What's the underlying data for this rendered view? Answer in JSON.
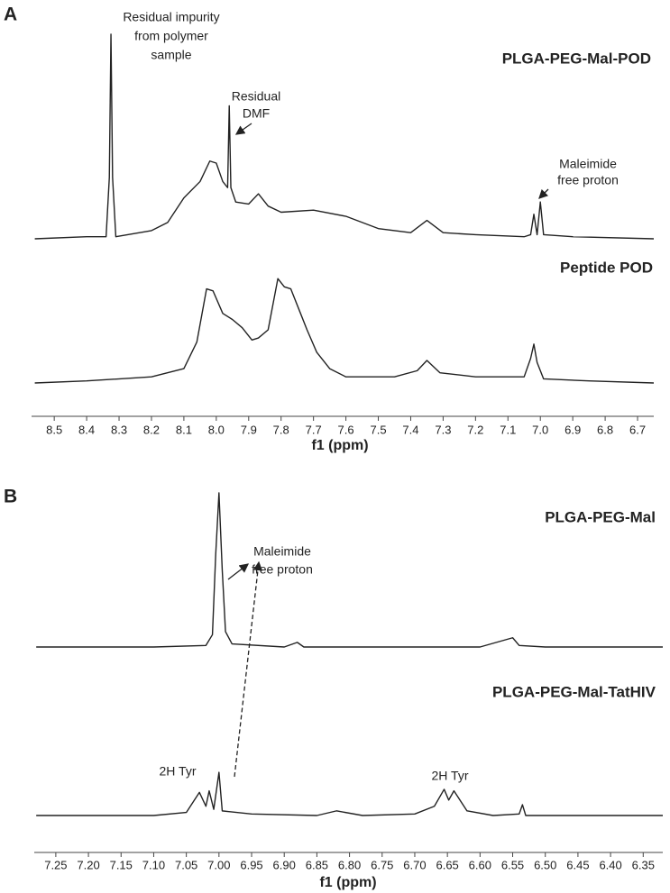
{
  "chart_data": [
    {
      "type": "line",
      "panel_label": "A",
      "xlabel": "f1 (ppm)",
      "xlim": [
        8.57,
        6.65
      ],
      "xticks": [
        8.5,
        8.4,
        8.3,
        8.2,
        8.1,
        {
          "value": 8,
          "label": "8.0"
        },
        7.9,
        7.8,
        7.7,
        7.6,
        7.5,
        7.4,
        7.3,
        7.2,
        7.1,
        {
          "value": 7,
          "label": "7.0"
        },
        6.9,
        6.8,
        6.7
      ],
      "series": [
        {
          "name": "PLGA-PEG-Mal-POD",
          "color": "#222222",
          "x": [
            8.56,
            8.4,
            8.34,
            8.33,
            8.325,
            8.32,
            8.31,
            8.2,
            8.15,
            8.1,
            8.05,
            8.02,
            8.0,
            7.98,
            7.965,
            7.96,
            7.955,
            7.94,
            7.9,
            7.87,
            7.84,
            7.8,
            7.7,
            7.6,
            7.5,
            7.4,
            7.35,
            7.3,
            7.2,
            7.05,
            7.03,
            7.02,
            7.01,
            7.0,
            6.99,
            6.9,
            6.65
          ],
          "values": [
            0,
            1,
            1,
            30,
            100,
            30,
            1,
            4,
            8,
            20,
            28,
            38,
            37,
            28,
            25,
            65,
            25,
            18,
            17,
            22,
            16,
            13,
            14,
            11,
            5,
            3,
            9,
            3,
            2,
            1,
            2,
            12,
            2,
            18,
            2,
            1,
            0
          ]
        },
        {
          "name": "Peptide POD",
          "color": "#222222",
          "x": [
            8.56,
            8.4,
            8.2,
            8.1,
            8.06,
            8.03,
            8.01,
            7.98,
            7.95,
            7.92,
            7.89,
            7.87,
            7.84,
            7.81,
            7.79,
            7.77,
            7.74,
            7.72,
            7.69,
            7.65,
            7.6,
            7.45,
            7.38,
            7.35,
            7.31,
            7.2,
            7.05,
            7.03,
            7.02,
            7.01,
            6.99,
            6.85,
            6.65
          ],
          "values": [
            0,
            1,
            3,
            7,
            20,
            46,
            45,
            34,
            31,
            27,
            21,
            22,
            26,
            51,
            47,
            46,
            34,
            26,
            15,
            7,
            3,
            3,
            6,
            11,
            5,
            3,
            3,
            12,
            19,
            10,
            2,
            1,
            0
          ]
        }
      ],
      "annotations": [
        {
          "lines": [
            "Residual impurity",
            "from polymer",
            "sample"
          ]
        },
        {
          "lines": [
            "Residual",
            "DMF"
          ]
        },
        {
          "lines": [
            "Maleimide",
            "free proton"
          ]
        }
      ]
    },
    {
      "type": "line",
      "panel_label": "B",
      "xlabel": "f1 (ppm)",
      "xlim": [
        7.283,
        6.32
      ],
      "xticks": [
        7.25,
        {
          "value": 7.2,
          "label": "7.20"
        },
        7.15,
        {
          "value": 7.1,
          "label": "7.10"
        },
        7.05,
        {
          "value": 7,
          "label": "7.00"
        },
        6.95,
        {
          "value": 6.9,
          "label": "6.90"
        },
        6.85,
        {
          "value": 6.8,
          "label": "6.80"
        },
        6.75,
        {
          "value": 6.7,
          "label": "6.70"
        },
        6.65,
        {
          "value": 6.6,
          "label": "6.60"
        },
        6.55,
        {
          "value": 6.5,
          "label": "6.50"
        },
        6.45,
        {
          "value": 6.4,
          "label": "6.40"
        },
        6.35
      ],
      "series": [
        {
          "name": "PLGA-PEG-Mal",
          "color": "#222222",
          "x": [
            7.28,
            7.1,
            7.02,
            7.01,
            7.005,
            7.0,
            6.995,
            6.99,
            6.98,
            6.9,
            6.88,
            6.87,
            6.6,
            6.55,
            6.54,
            6.5,
            6.32
          ],
          "values": [
            0,
            0,
            1,
            8,
            60,
            100,
            50,
            10,
            2,
            0,
            3,
            0,
            0,
            6,
            1,
            0,
            0
          ]
        },
        {
          "name": "PLGA-PEG-Mal-TatHIV",
          "color": "#222222",
          "x": [
            7.28,
            7.1,
            7.05,
            7.03,
            7.02,
            7.015,
            7.008,
            7.0,
            6.995,
            6.95,
            6.85,
            6.82,
            6.78,
            6.7,
            6.67,
            6.655,
            6.648,
            6.64,
            6.62,
            6.58,
            6.54,
            6.535,
            6.53,
            6.32
          ],
          "values": [
            0,
            0,
            2,
            15,
            6,
            16,
            4,
            28,
            3,
            1,
            0,
            3,
            0,
            1,
            6,
            17,
            10,
            16,
            3,
            0,
            1,
            7,
            0,
            0
          ]
        }
      ],
      "annotations": [
        {
          "lines": [
            "Maleimide",
            "free proton"
          ]
        },
        {
          "lines": [
            "2H Tyr"
          ]
        },
        {
          "lines": [
            "2H Tyr"
          ]
        }
      ]
    }
  ]
}
